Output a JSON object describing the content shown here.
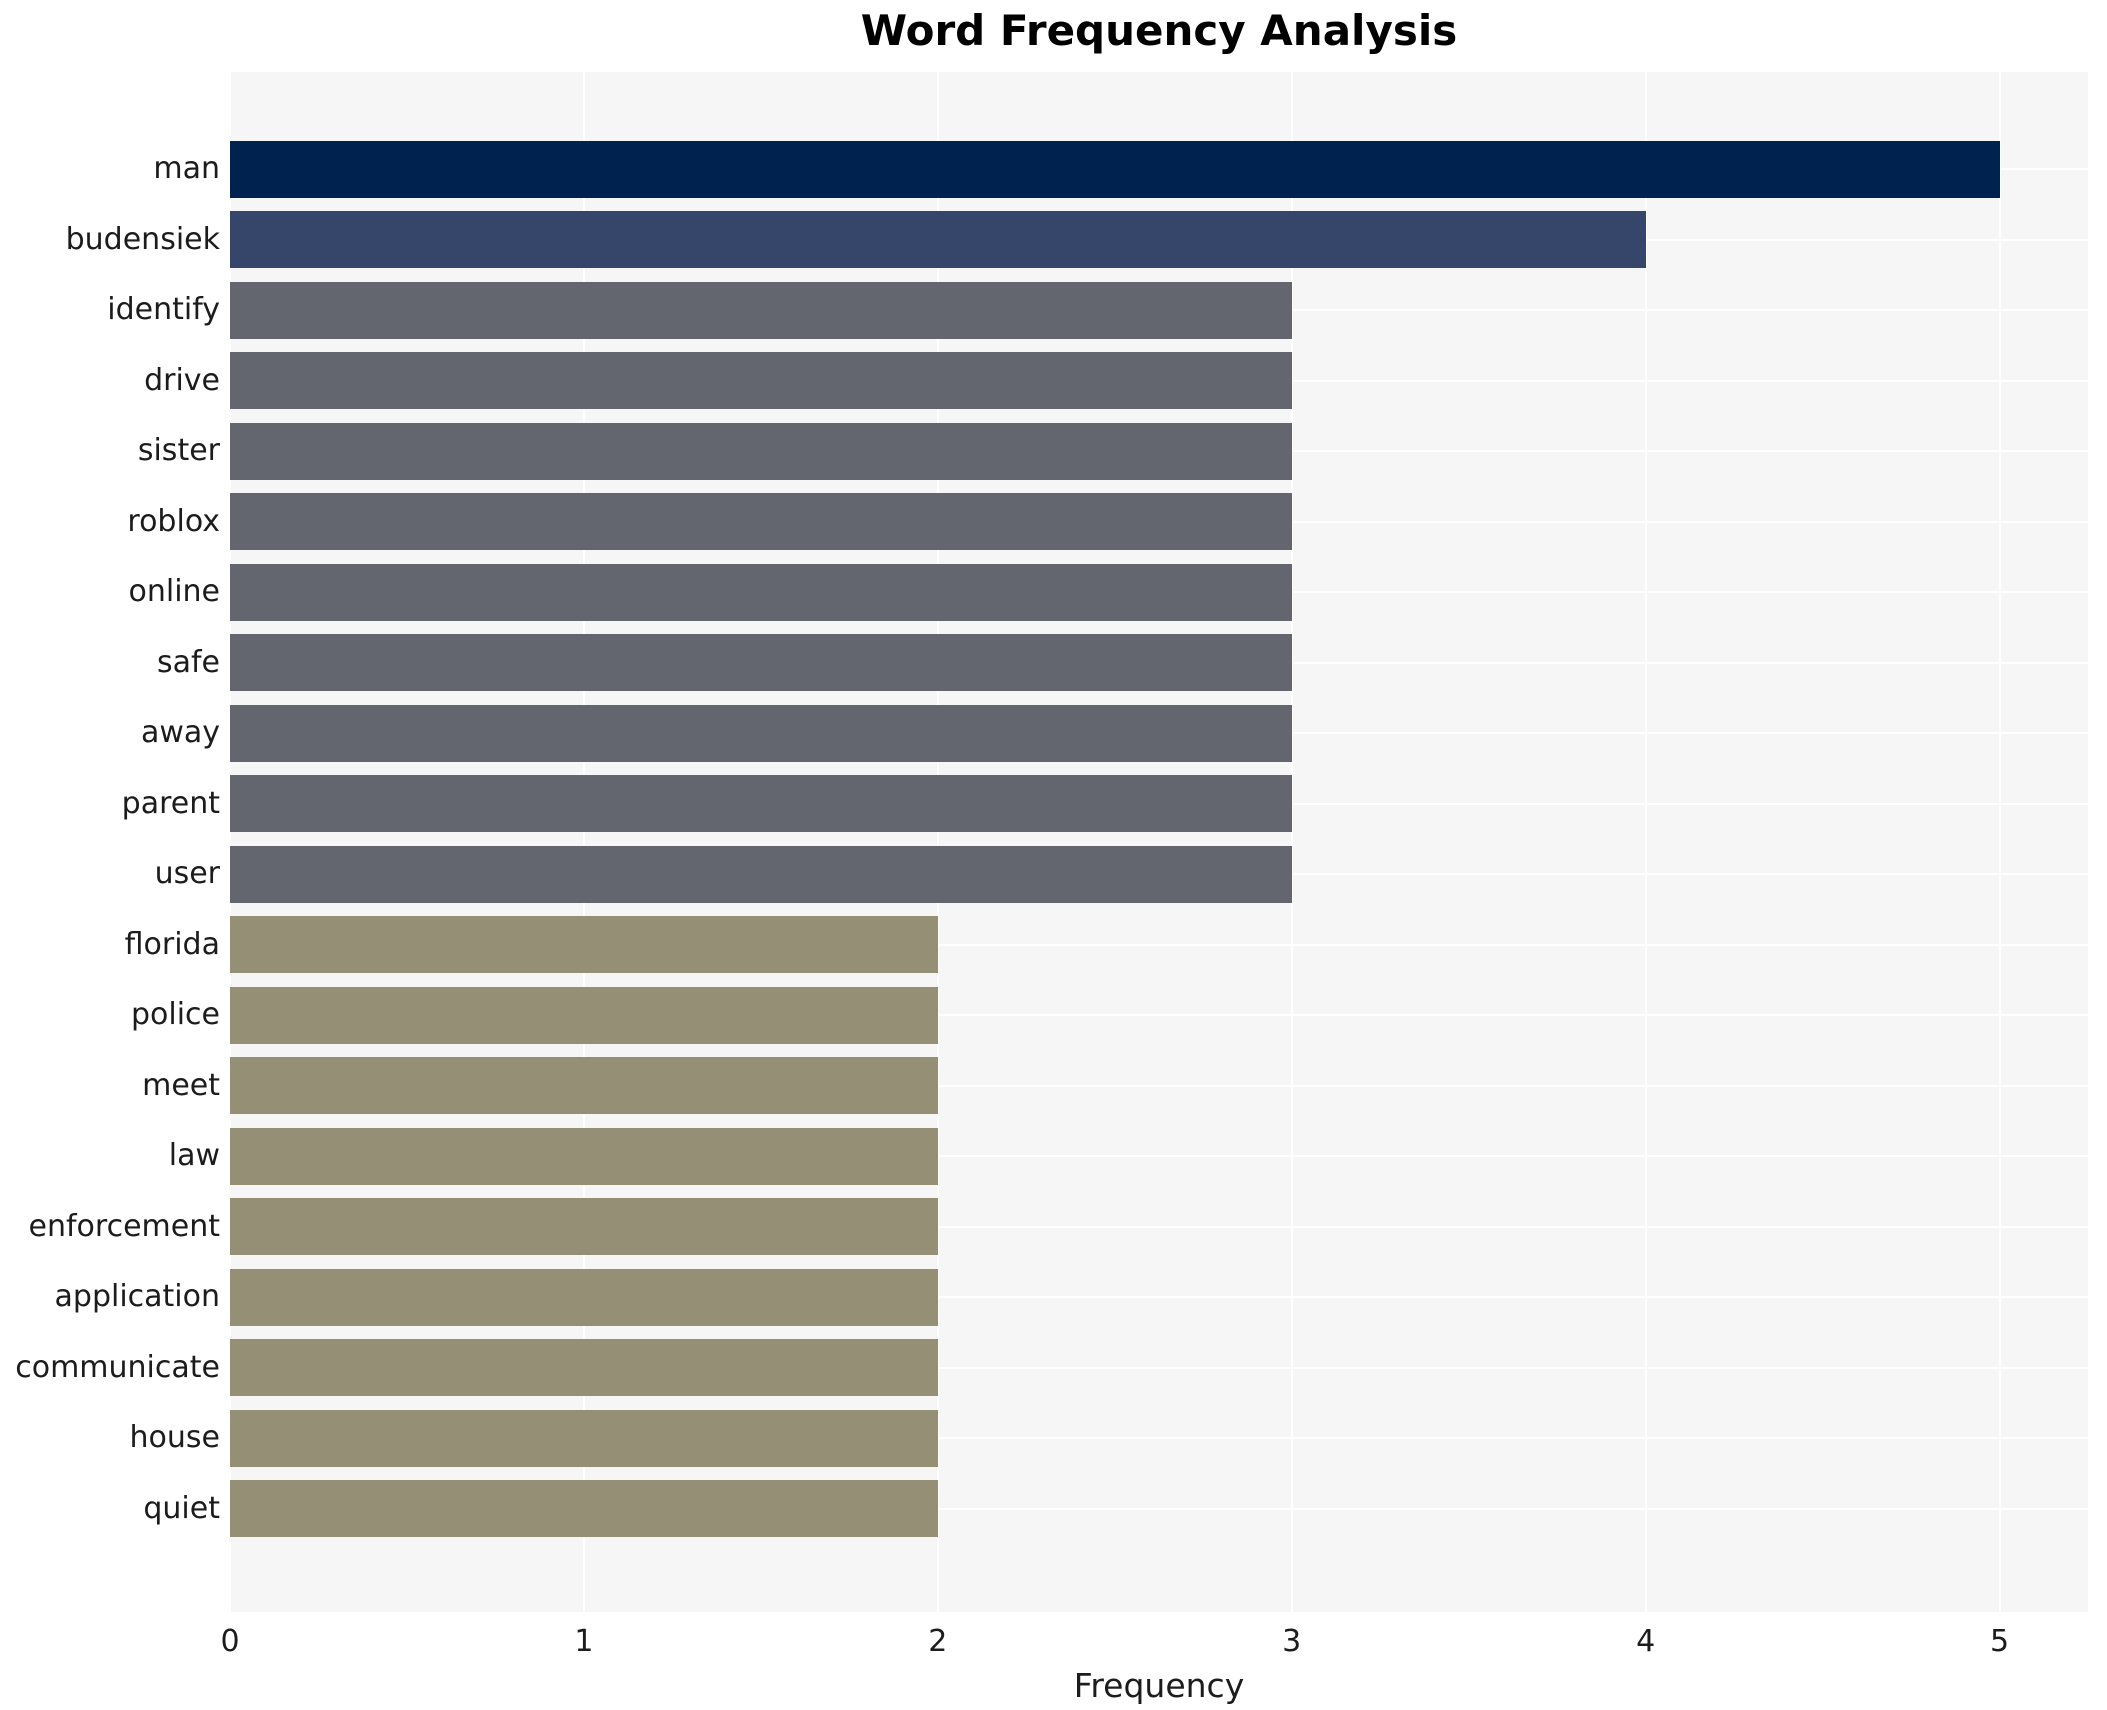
{
  "chart_data": {
    "type": "bar",
    "orientation": "horizontal",
    "title": "Word Frequency Analysis",
    "xlabel": "Frequency",
    "ylabel": "",
    "categories": [
      "man",
      "budensiek",
      "identify",
      "drive",
      "sister",
      "roblox",
      "online",
      "safe",
      "away",
      "parent",
      "user",
      "florida",
      "police",
      "meet",
      "law",
      "enforcement",
      "application",
      "communicate",
      "house",
      "quiet"
    ],
    "values": [
      5,
      4,
      3,
      3,
      3,
      3,
      3,
      3,
      3,
      3,
      3,
      2,
      2,
      2,
      2,
      2,
      2,
      2,
      2,
      2
    ],
    "bar_colors": [
      "#00224e",
      "#36466b",
      "#63666f",
      "#63666f",
      "#63666f",
      "#63666f",
      "#63666f",
      "#63666f",
      "#63666f",
      "#63666f",
      "#63666f",
      "#948f75",
      "#948f75",
      "#948f75",
      "#948f75",
      "#948f75",
      "#948f75",
      "#948f75",
      "#948f75",
      "#948f75"
    ],
    "x_ticks": [
      0,
      1,
      2,
      3,
      4,
      5
    ],
    "xlim": [
      0,
      5.25
    ],
    "grid": true,
    "legend_position": "none",
    "plot_bg_color": "#f6f6f7",
    "grid_color": "#ffffff",
    "text_color": "#1c1c1c",
    "title_color": "#000000"
  }
}
